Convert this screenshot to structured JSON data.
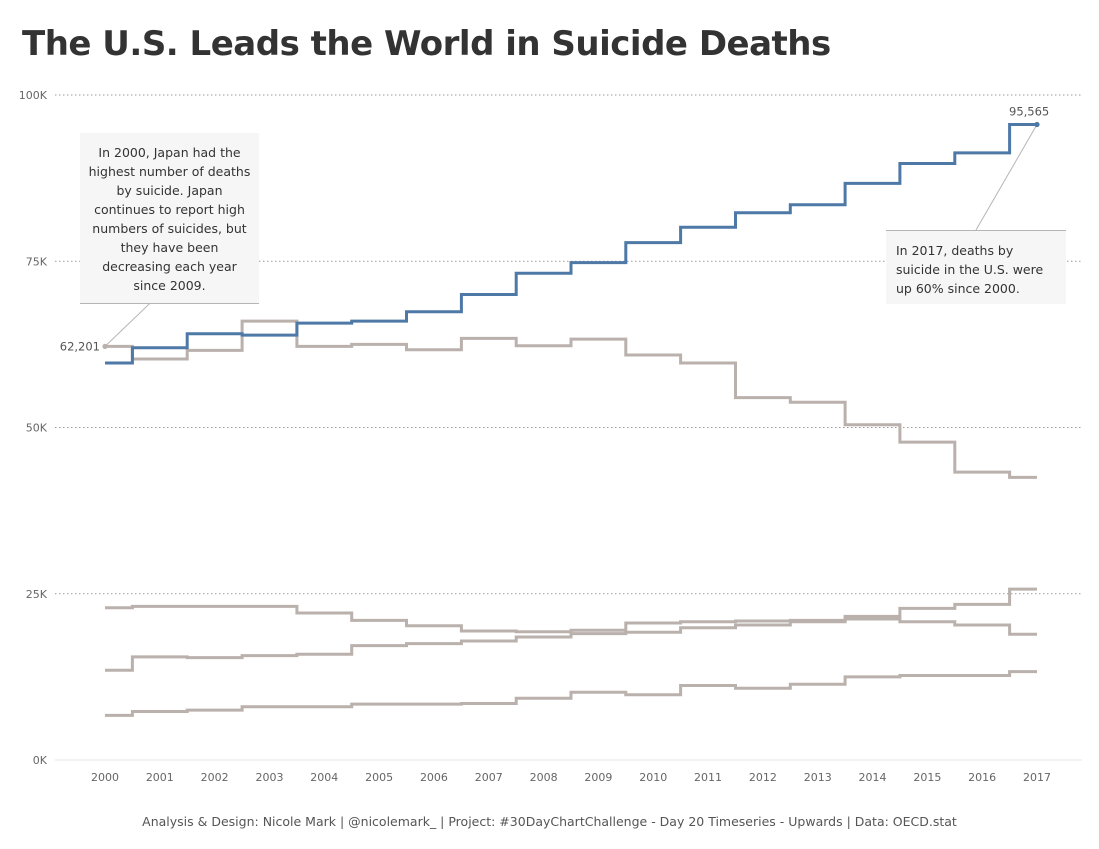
{
  "title": "The U.S. Leads the World in Suicide Deaths",
  "footer": "Analysis & Design: Nicole Mark | @nicolemark_ | Project: #30DayChartChallenge - Day 20 Timeseries - Upwards | Data: OECD.stat",
  "annotations": {
    "japan": "In 2000, Japan had the highest number of deaths by suicide. Japan continues to report high numbers of suicides, but they have been decreasing each year since 2009.",
    "us": "In 2017, deaths by suicide in the U.S. were up 60% since 2000."
  },
  "colors": {
    "highlight": "#4e79a7",
    "other": "#bab0ac",
    "grid": "#9a9a9a",
    "axis_text": "#666666"
  },
  "chart_data": {
    "type": "line",
    "step": true,
    "x": [
      2000,
      2001,
      2002,
      2003,
      2004,
      2005,
      2006,
      2007,
      2008,
      2009,
      2010,
      2011,
      2012,
      2013,
      2014,
      2015,
      2016,
      2017
    ],
    "xlabel": "",
    "ylabel": "",
    "ylim": [
      0,
      100000
    ],
    "yticks": [
      0,
      25000,
      50000,
      75000,
      100000
    ],
    "ytick_labels": [
      "0K",
      "25K",
      "50K",
      "75K",
      "100K"
    ],
    "grid": true,
    "series": [
      {
        "values": [
          59700,
          62000,
          64100,
          63900,
          65700,
          66000,
          67400,
          70000,
          73200,
          74800,
          77800,
          80100,
          82300,
          83500,
          86700,
          89700,
          91300,
          95565
        ],
        "highlight": true
      },
      {
        "values": [
          62201,
          60300,
          61600,
          66000,
          62200,
          62500,
          61700,
          63400,
          62300,
          63300,
          60900,
          59700,
          54500,
          53800,
          50400,
          47800,
          43300,
          42500
        ],
        "highlight": false
      },
      {
        "values": [
          22900,
          23100,
          23100,
          23100,
          22100,
          21000,
          20200,
          19400,
          19300,
          19500,
          20600,
          20800,
          20900,
          21000,
          21200,
          20800,
          20300,
          18900
        ],
        "highlight": false
      },
      {
        "values": [
          13500,
          15500,
          15400,
          15700,
          15900,
          17200,
          17500,
          17900,
          18500,
          19000,
          19200,
          19900,
          20300,
          20800,
          21600,
          22800,
          23400,
          25700
        ],
        "highlight": false
      },
      {
        "values": [
          6700,
          7300,
          7500,
          8000,
          8000,
          8400,
          8400,
          8500,
          9300,
          10200,
          9800,
          11200,
          10800,
          11400,
          12500,
          12700,
          12700,
          13300
        ],
        "highlight": false
      }
    ],
    "labels": [
      {
        "text": "62,201",
        "year": 2000,
        "value": 62201,
        "position": "left"
      },
      {
        "text": "95,565",
        "year": 2017,
        "value": 95565,
        "position": "top-right"
      }
    ]
  }
}
